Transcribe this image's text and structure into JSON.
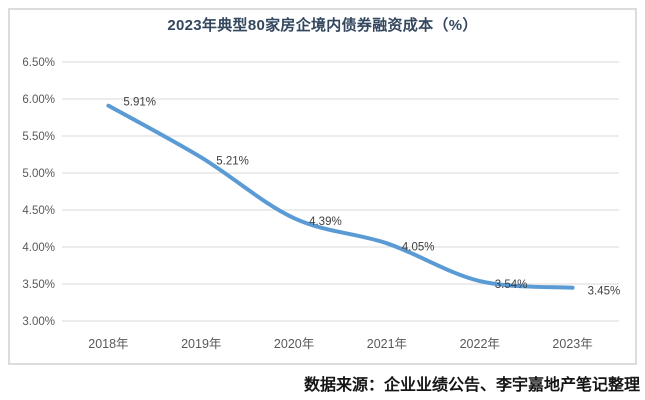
{
  "chart_data": {
    "type": "line",
    "title": "2023年典型80家房企境内债券融资成本（%）",
    "categories": [
      "2018年",
      "2019年",
      "2020年",
      "2021年",
      "2022年",
      "2023年"
    ],
    "values": [
      5.91,
      5.21,
      4.39,
      4.05,
      3.54,
      3.45
    ],
    "data_labels": [
      "5.91%",
      "5.21%",
      "4.39%",
      "4.05%",
      "3.54%",
      "3.45%"
    ],
    "y_ticks": [
      "6.50%",
      "6.00%",
      "5.50%",
      "5.00%",
      "4.50%",
      "4.00%",
      "3.50%",
      "3.00%"
    ],
    "ylim": [
      3.0,
      6.5
    ],
    "y_step": 0.5,
    "xlabel": "",
    "ylabel": "",
    "grid": true,
    "legend": false,
    "smooth_line": true,
    "line_color": "#5b9bd5",
    "gridline_color": "#d9d9d9",
    "title_color": "#33475e",
    "tick_color": "#595959",
    "data_label_color": "#404040"
  },
  "source_note": "数据来源：企业业绩公告、李宇嘉地产笔记整理"
}
